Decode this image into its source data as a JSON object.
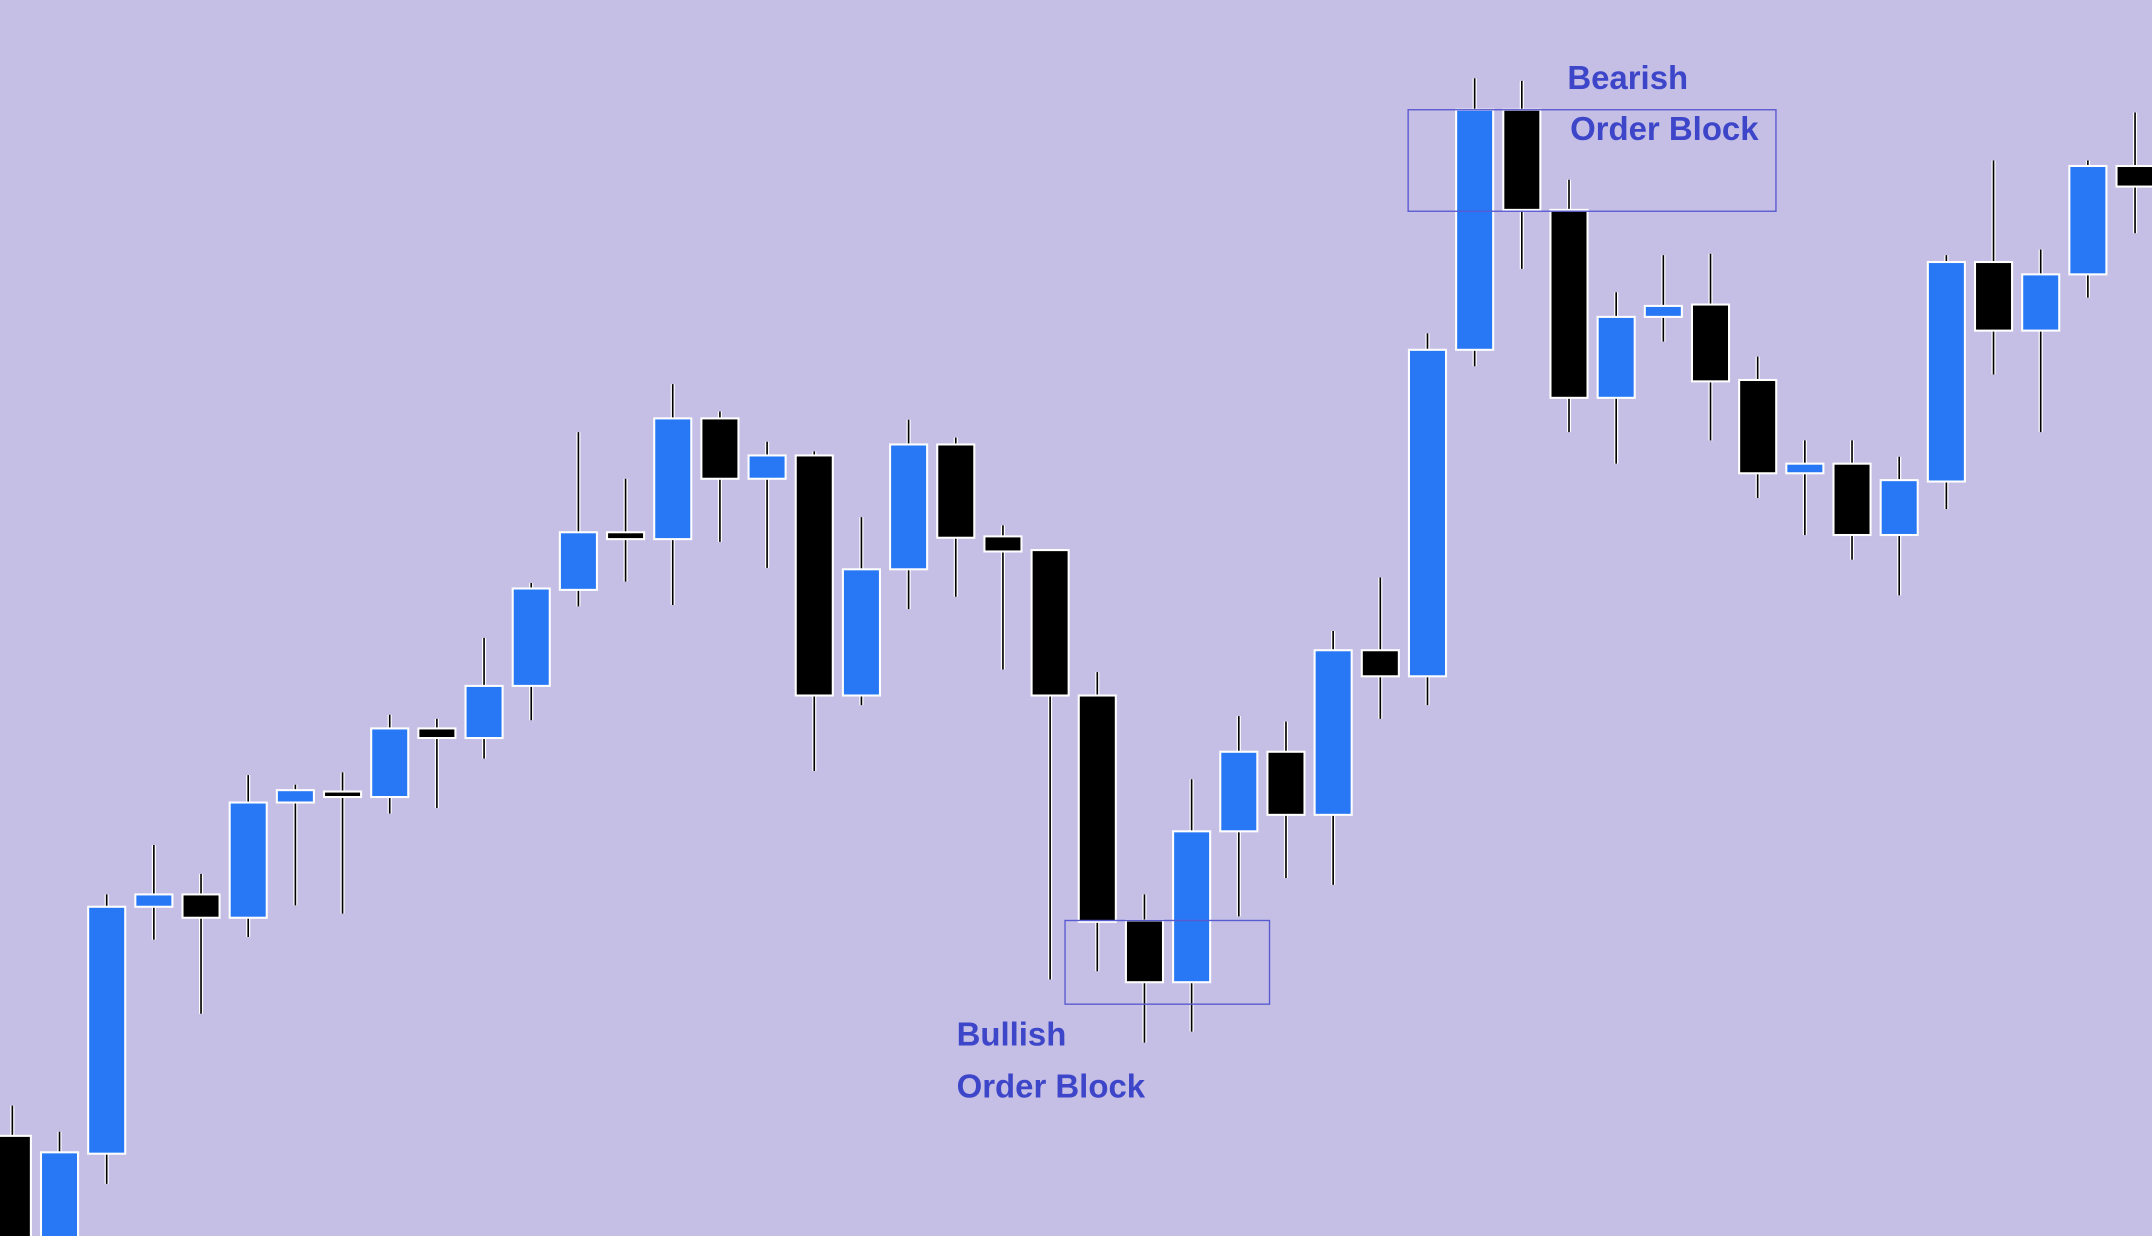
{
  "chart_data": {
    "type": "candlestick",
    "open": [
      73,
      -4,
      60,
      240,
      249,
      232,
      316,
      324,
      320,
      370,
      363,
      401,
      471,
      513,
      508,
      596,
      552,
      569,
      394,
      486,
      577,
      510,
      500,
      394,
      230,
      185,
      295,
      353,
      307,
      427,
      408,
      646,
      821,
      748,
      611,
      670,
      679,
      624,
      556,
      563,
      511,
      550,
      710,
      660,
      701,
      780
    ],
    "high": [
      95,
      76,
      249,
      285,
      264,
      336,
      329,
      338,
      380,
      377,
      436,
      476,
      586,
      552,
      621,
      601,
      579,
      572,
      524,
      595,
      582,
      518,
      500,
      411,
      249,
      333,
      379,
      375,
      441,
      480,
      658,
      844,
      842,
      770,
      688,
      715,
      716,
      641,
      580,
      580,
      568,
      715,
      784,
      719,
      784,
      819
    ],
    "low": [
      -19,
      -14,
      38,
      216,
      162,
      218,
      241,
      235,
      308,
      312,
      348,
      376,
      459,
      477,
      460,
      506,
      487,
      339,
      387,
      457,
      466,
      413,
      187,
      193,
      141,
      149,
      233,
      261,
      256,
      377,
      387,
      634,
      705,
      586,
      563,
      652,
      580,
      538,
      511,
      493,
      467,
      530,
      628,
      586,
      684,
      731
    ],
    "close": [
      -4,
      61,
      240,
      249,
      232,
      316,
      325,
      320,
      370,
      363,
      401,
      472,
      513,
      508,
      596,
      552,
      569,
      394,
      486,
      577,
      509,
      499,
      394,
      229,
      185,
      295,
      353,
      307,
      427,
      408,
      646,
      821,
      748,
      611,
      670,
      678,
      623,
      556,
      563,
      511,
      551,
      710,
      660,
      701,
      780,
      765
    ],
    "up_color": "#2878f5",
    "down_color": "#000000",
    "background": "#c5bfe6",
    "ylim": [
      0,
      901
    ],
    "annotations": [
      {
        "lines": [
          "Bearish",
          "Order Block"
        ],
        "color": "#3d45c9"
      },
      {
        "lines": [
          "Bullish",
          "Order Block"
        ],
        "color": "#3d45c9"
      }
    ]
  }
}
